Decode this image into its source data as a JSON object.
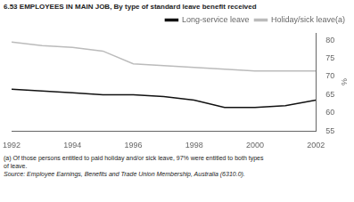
{
  "chart_data": {
    "type": "line",
    "title": "6.53  EMPLOYEES IN MAIN JOB, By type of standard leave benefit received",
    "y_label": "%",
    "x": [
      1992,
      1993,
      1994,
      1995,
      1996,
      1997,
      1998,
      1999,
      2000,
      2001,
      2002
    ],
    "series": [
      {
        "name": "Long-service leave",
        "color": "#111111",
        "values": [
          66.5,
          66.0,
          65.5,
          65.0,
          65.0,
          64.5,
          63.5,
          61.5,
          61.5,
          62.0,
          63.5
        ]
      },
      {
        "name": "Holiday/sick leave(a)",
        "color": "#bbbbbb",
        "values": [
          79.5,
          78.5,
          78.0,
          77.0,
          73.5,
          73.0,
          72.5,
          72.0,
          71.5,
          71.5,
          71.5
        ]
      }
    ],
    "xlim": [
      1992,
      2002
    ],
    "xticks": [
      1992,
      1994,
      1996,
      1998,
      2000,
      2002
    ],
    "ylim": [
      55,
      82
    ],
    "yticks": [
      55,
      60,
      65,
      70,
      75,
      80
    ],
    "grid": false,
    "legend": "upper right",
    "annotations": [
      "(a) Of those persons entitled to paid holiday and/or sick leave, 97% were entitled to both types\nof leave.",
      "Source: Employee Earnings, Benefits and Trade Union Membership, Australia (6310.0)."
    ]
  }
}
